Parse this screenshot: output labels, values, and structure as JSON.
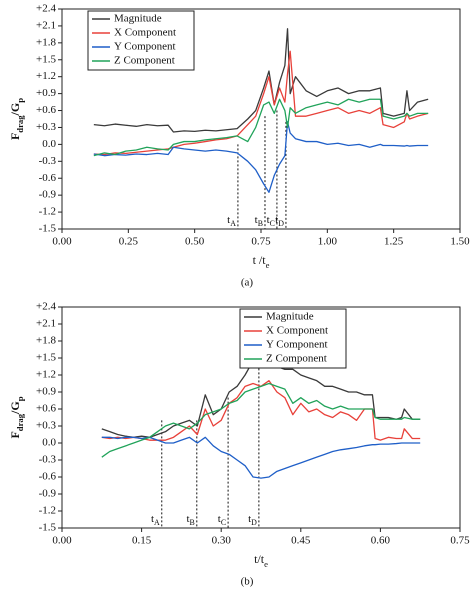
{
  "chart_data": [
    {
      "type": "line",
      "caption": "(a)",
      "ylabel": [
        "F",
        "drag",
        "/G",
        "p"
      ],
      "xlabel": [
        "t /t",
        "e"
      ],
      "xlim": [
        0,
        1.5
      ],
      "ylim": [
        -1.5,
        2.4
      ],
      "xticks": [
        {
          "value": 0,
          "label": "0.00"
        },
        0.25,
        {
          "value": 0.5,
          "label": "0.50"
        },
        0.75,
        {
          "value": 1,
          "label": "1.00"
        },
        1.25,
        {
          "value": 1.5,
          "label": "1.50"
        }
      ],
      "yticks": [
        -1.5,
        -1.2,
        -0.9,
        -0.6,
        -0.3,
        {
          "value": 0,
          "label": "0.0"
        },
        {
          "value": 0.3,
          "label": "+0.3"
        },
        {
          "value": 0.6,
          "label": "+0.6"
        },
        {
          "value": 0.9,
          "label": "+0.9"
        },
        {
          "value": 1.2,
          "label": "+1.2"
        },
        {
          "value": 1.5,
          "label": "+1.5"
        },
        {
          "value": 1.8,
          "label": "+1.8"
        },
        {
          "value": 2.1,
          "label": "+2.1"
        },
        {
          "value": 2.4,
          "label": "+2.4"
        }
      ],
      "legend": "upper left",
      "x": [
        0.12,
        0.16,
        0.2,
        0.24,
        0.28,
        0.32,
        0.36,
        0.4,
        0.42,
        0.46,
        0.5,
        0.54,
        0.58,
        0.62,
        0.66,
        0.7,
        0.73,
        0.76,
        0.78,
        0.8,
        0.82,
        0.84,
        0.85,
        0.86,
        0.88,
        0.92,
        0.96,
        1.0,
        1.04,
        1.08,
        1.12,
        1.16,
        1.2,
        1.21,
        1.25,
        1.29,
        1.3,
        1.31,
        1.34,
        1.38
      ],
      "series": [
        {
          "name": "Magnitude",
          "color": "#3a3a3a",
          "values": [
            0.35,
            0.33,
            0.36,
            0.34,
            0.32,
            0.35,
            0.33,
            0.34,
            0.22,
            0.24,
            0.23,
            0.25,
            0.24,
            0.26,
            0.28,
            0.45,
            0.6,
            1.0,
            1.3,
            0.7,
            1.1,
            1.4,
            2.05,
            0.9,
            1.2,
            0.95,
            0.85,
            0.95,
            1.0,
            0.9,
            0.95,
            0.95,
            1.0,
            0.55,
            0.5,
            0.55,
            0.95,
            0.6,
            0.75,
            0.8
          ]
        },
        {
          "name": "X Component",
          "color": "#e8413a",
          "values": [
            -0.17,
            -0.18,
            -0.15,
            -0.16,
            -0.14,
            -0.12,
            -0.1,
            -0.08,
            -0.05,
            0.0,
            0.02,
            0.05,
            0.08,
            0.1,
            0.15,
            0.35,
            0.5,
            0.9,
            1.2,
            0.7,
            1.0,
            0.75,
            1.25,
            1.65,
            0.5,
            0.5,
            0.55,
            0.6,
            0.65,
            0.55,
            0.6,
            0.55,
            0.65,
            0.35,
            0.3,
            0.4,
            0.55,
            0.45,
            0.5,
            0.55
          ]
        },
        {
          "name": "Y Component",
          "color": "#1f5fc8",
          "values": [
            -0.17,
            -0.2,
            -0.18,
            -0.19,
            -0.17,
            -0.18,
            -0.16,
            -0.18,
            -0.05,
            -0.08,
            -0.1,
            -0.12,
            -0.1,
            -0.12,
            -0.15,
            -0.3,
            -0.45,
            -0.7,
            -0.85,
            -0.55,
            -0.35,
            -0.2,
            0.4,
            0.2,
            0.1,
            0.05,
            0.05,
            0.0,
            0.02,
            -0.02,
            0.0,
            -0.05,
            0.0,
            -0.02,
            -0.02,
            -0.03,
            -0.02,
            -0.03,
            -0.02,
            -0.02
          ]
        },
        {
          "name": "Z Component",
          "color": "#21a35a",
          "values": [
            -0.2,
            -0.15,
            -0.18,
            -0.12,
            -0.1,
            -0.05,
            -0.08,
            -0.1,
            0.0,
            0.05,
            0.05,
            0.08,
            0.1,
            0.12,
            0.15,
            0.05,
            0.3,
            0.7,
            0.75,
            0.55,
            0.8,
            0.6,
            0.3,
            0.65,
            0.55,
            0.65,
            0.7,
            0.75,
            0.7,
            0.8,
            0.75,
            0.8,
            0.8,
            0.5,
            0.45,
            0.5,
            0.55,
            0.5,
            0.55,
            0.55
          ]
        }
      ],
      "annotations": [
        {
          "label": [
            "t",
            "A"
          ],
          "x": 0.663,
          "y": 0.0
        },
        {
          "label": [
            "t",
            "B"
          ],
          "x": 0.765,
          "y": 0.5
        },
        {
          "label": [
            "t",
            "C"
          ],
          "x": 0.81,
          "y": 0.6
        },
        {
          "label": [
            "t",
            "D"
          ],
          "x": 0.844,
          "y": 0.4
        }
      ]
    },
    {
      "type": "line",
      "caption": "(b)",
      "ylabel": [
        "F",
        "drag",
        "/G",
        "p"
      ],
      "xlabel": [
        "t/t",
        "e"
      ],
      "xlim": [
        0,
        0.75
      ],
      "ylim": [
        -1.5,
        2.4
      ],
      "xticks": [
        {
          "value": 0,
          "label": "0.00"
        },
        0.15,
        {
          "value": 0.3,
          "label": "0.30"
        },
        0.45,
        {
          "value": 0.6,
          "label": "0.60"
        },
        0.75
      ],
      "yticks": [
        -1.5,
        -1.2,
        -0.9,
        -0.6,
        -0.3,
        {
          "value": 0,
          "label": "0.0"
        },
        {
          "value": 0.3,
          "label": "+0.3"
        },
        {
          "value": 0.6,
          "label": "+0.6"
        },
        {
          "value": 0.9,
          "label": "+0.9"
        },
        {
          "value": 1.2,
          "label": "+1.2"
        },
        {
          "value": 1.5,
          "label": "+1.5"
        },
        {
          "value": 1.8,
          "label": "+1.8"
        },
        {
          "value": 2.1,
          "label": "+2.1"
        },
        {
          "value": 2.4,
          "label": "+2.4"
        }
      ],
      "legend": "upper center",
      "x": [
        0.075,
        0.09,
        0.105,
        0.12,
        0.135,
        0.15,
        0.165,
        0.18,
        0.195,
        0.21,
        0.225,
        0.24,
        0.255,
        0.27,
        0.285,
        0.3,
        0.315,
        0.33,
        0.345,
        0.36,
        0.375,
        0.39,
        0.405,
        0.42,
        0.435,
        0.45,
        0.465,
        0.48,
        0.495,
        0.51,
        0.525,
        0.54,
        0.555,
        0.57,
        0.585,
        0.59,
        0.6,
        0.615,
        0.63,
        0.64,
        0.645,
        0.66,
        0.675
      ],
      "series": [
        {
          "name": "Magnitude",
          "color": "#3a3a3a",
          "values": [
            0.25,
            0.2,
            0.15,
            0.12,
            0.1,
            0.12,
            0.1,
            0.15,
            0.2,
            0.3,
            0.35,
            0.4,
            0.3,
            0.85,
            0.5,
            0.6,
            0.9,
            1.0,
            1.2,
            1.45,
            1.65,
            1.55,
            1.35,
            1.3,
            1.3,
            1.2,
            1.15,
            1.1,
            1.0,
            1.0,
            0.95,
            0.9,
            0.9,
            0.85,
            0.85,
            0.45,
            0.45,
            0.45,
            0.42,
            0.45,
            0.6,
            0.42,
            0.42
          ]
        },
        {
          "name": "X Component",
          "color": "#e8413a",
          "values": [
            0.1,
            0.08,
            0.1,
            0.08,
            0.1,
            0.08,
            0.05,
            0.05,
            0.05,
            0.1,
            0.2,
            0.3,
            0.15,
            0.6,
            0.3,
            0.4,
            0.7,
            0.8,
            1.0,
            1.05,
            1.0,
            1.1,
            0.9,
            0.8,
            0.5,
            0.7,
            0.55,
            0.6,
            0.5,
            0.45,
            0.55,
            0.5,
            0.4,
            0.6,
            0.6,
            0.08,
            0.05,
            0.1,
            0.08,
            0.08,
            0.25,
            0.08,
            0.08
          ]
        },
        {
          "name": "Y Component",
          "color": "#1f5fc8",
          "values": [
            0.1,
            0.1,
            0.08,
            0.1,
            0.1,
            0.08,
            0.1,
            0.05,
            0.0,
            0.0,
            0.05,
            0.1,
            0.0,
            0.1,
            -0.05,
            -0.15,
            -0.2,
            -0.3,
            -0.4,
            -0.6,
            -0.62,
            -0.6,
            -0.5,
            -0.45,
            -0.4,
            -0.35,
            -0.3,
            -0.25,
            -0.2,
            -0.15,
            -0.12,
            -0.1,
            -0.08,
            -0.05,
            -0.03,
            -0.03,
            -0.02,
            -0.02,
            -0.01,
            0.0,
            0.0,
            0.0,
            0.0
          ]
        },
        {
          "name": "Z Component",
          "color": "#21a35a",
          "values": [
            -0.25,
            -0.15,
            -0.1,
            -0.05,
            0.0,
            0.05,
            0.1,
            0.2,
            0.3,
            0.35,
            0.3,
            0.25,
            0.35,
            0.5,
            0.55,
            0.6,
            0.7,
            0.75,
            0.9,
            0.95,
            1.0,
            1.05,
            1.0,
            0.95,
            0.7,
            0.8,
            0.7,
            0.75,
            0.65,
            0.6,
            0.65,
            0.6,
            0.6,
            0.6,
            0.6,
            0.45,
            0.42,
            0.42,
            0.42,
            0.42,
            0.45,
            0.42,
            0.42
          ]
        }
      ],
      "annotations": [
        {
          "label": [
            "t",
            "A"
          ],
          "x": 0.188,
          "y": 0.4
        },
        {
          "label": [
            "t",
            "B"
          ],
          "x": 0.254,
          "y": 0.4
        },
        {
          "label": [
            "t",
            "C"
          ],
          "x": 0.313,
          "y": 0.8
        },
        {
          "label": [
            "t",
            "D"
          ],
          "x": 0.371,
          "y": 1.6
        }
      ]
    }
  ]
}
